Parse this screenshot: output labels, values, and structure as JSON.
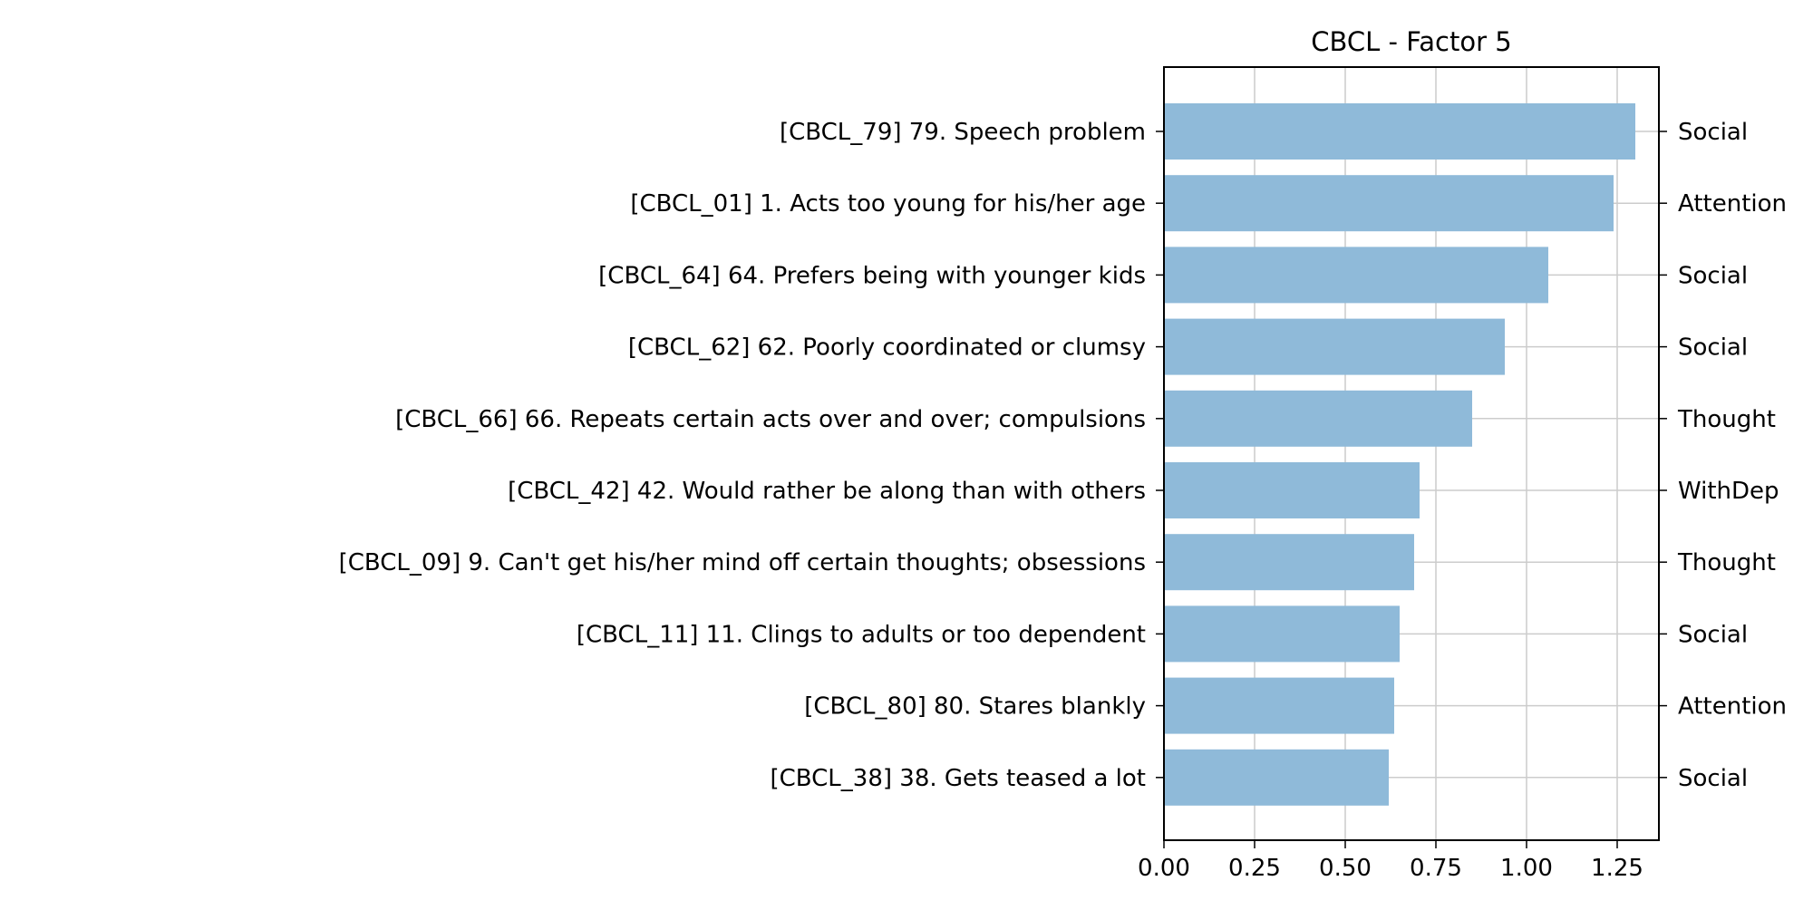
{
  "chart_data": {
    "type": "bar",
    "orientation": "horizontal",
    "title": "CBCL - Factor 5",
    "xlabel": "",
    "ylabel": "",
    "xlim": [
      0,
      1.365
    ],
    "xticks": [
      0.0,
      0.25,
      0.5,
      0.75,
      1.0,
      1.25
    ],
    "xtick_labels": [
      "0.00",
      "0.25",
      "0.50",
      "0.75",
      "1.00",
      "1.25"
    ],
    "grid": true,
    "legend": "none",
    "bar_color": "#8fbad9",
    "categories": [
      "[CBCL_79] 79. Speech problem",
      "[CBCL_01] 1. Acts too young for his/her age",
      "[CBCL_64] 64. Prefers being with younger kids",
      "[CBCL_62] 62. Poorly coordinated or clumsy",
      "[CBCL_66] 66. Repeats certain acts over and over; compulsions",
      "[CBCL_42] 42. Would rather be along than with others",
      "[CBCL_09] 9. Can't get his/her mind off certain thoughts; obsessions",
      "[CBCL_11] 11. Clings to adults or too dependent",
      "[CBCL_80] 80. Stares blankly",
      "[CBCL_38] 38. Gets teased a lot"
    ],
    "values": [
      1.3,
      1.24,
      1.06,
      0.94,
      0.85,
      0.705,
      0.69,
      0.65,
      0.635,
      0.62
    ],
    "right_labels": [
      "Social",
      "Attention",
      "Social",
      "Social",
      "Thought",
      "WithDep",
      "Thought",
      "Social",
      "Attention",
      "Social"
    ]
  }
}
